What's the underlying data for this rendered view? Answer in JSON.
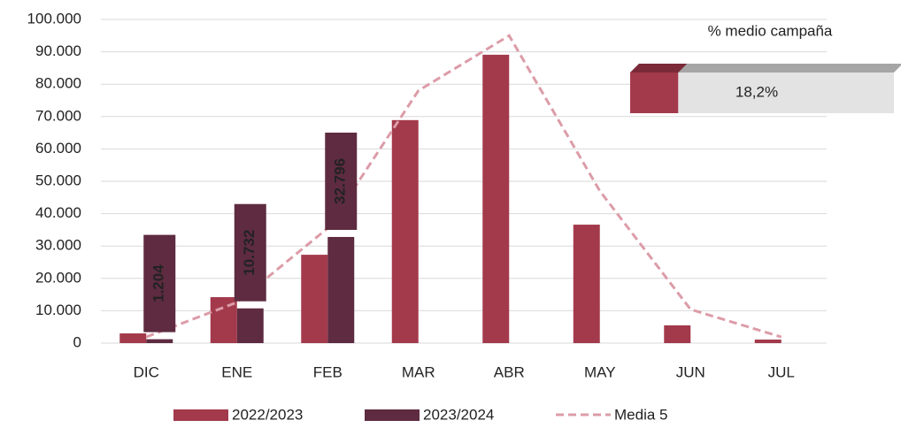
{
  "chart_data": {
    "type": "bar",
    "categories": [
      "DIC",
      "ENE",
      "FEB",
      "MAR",
      "ABR",
      "MAY",
      "JUN",
      "JUL"
    ],
    "series": [
      {
        "name": "2022/2023",
        "color": "#a33a4c",
        "values": [
          3000,
          14200,
          27300,
          68900,
          89100,
          36600,
          5500,
          1100
        ]
      },
      {
        "name": "2023/2024",
        "color": "#5e2b40",
        "values": [
          1204,
          10732,
          32796,
          null,
          null,
          null,
          null,
          null
        ],
        "value_labels": [
          "1.204",
          "10.732",
          "32.796",
          null,
          null,
          null,
          null,
          null
        ]
      },
      {
        "name": "Media 5",
        "type": "line",
        "color": "#dc9ca8",
        "values": [
          1900,
          12600,
          35500,
          78000,
          95000,
          47000,
          10400,
          1900
        ]
      }
    ],
    "ylim": [
      0,
      100000
    ],
    "yticks": [
      0,
      {
        "value": 10000,
        "label": "10.000"
      },
      {
        "value": 20000,
        "label": "20.000"
      },
      {
        "value": 30000,
        "label": "30.000"
      },
      {
        "value": 40000,
        "label": "40.000"
      },
      {
        "value": 50000,
        "label": "50.000"
      },
      {
        "value": 60000,
        "label": "60.000"
      },
      {
        "value": 70000,
        "label": "70.000"
      },
      {
        "value": 80000,
        "label": "80.000"
      },
      {
        "value": 90000,
        "label": "90.000"
      },
      {
        "value": 100000,
        "label": "100.000"
      }
    ],
    "grid": true,
    "legend": "bottom",
    "inset": {
      "title": "% medio campaña",
      "value": 18.2,
      "label": "18,2%"
    }
  }
}
